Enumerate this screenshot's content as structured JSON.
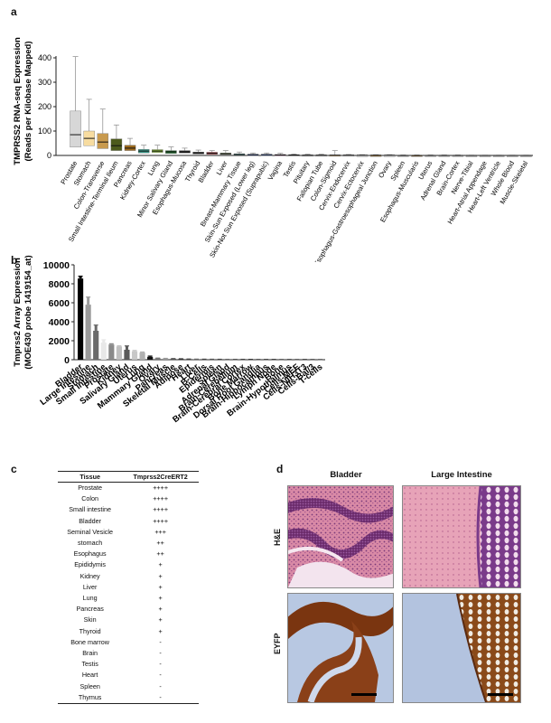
{
  "panels": {
    "a": "a",
    "b": "b",
    "c": "c",
    "d": "d"
  },
  "chart_data": [
    {
      "type": "box",
      "ylabel": "TMPRSS2 RNA-seq Expression\n(Reads per Kilobase Mapped)",
      "ylim": [
        0,
        400
      ],
      "yticks": [
        0,
        100,
        200,
        300,
        400
      ],
      "categories": [
        "Prostate",
        "Stomach",
        "Colon-Transverse",
        "Small Intestine-Terminal Ileum",
        "Pancreas",
        "Kidney-Cortex",
        "Lung",
        "Minor Salivary Gland",
        "Esophagus-Mucosa",
        "Thyroid",
        "Bladder",
        "Liver",
        "Breast-Mammary Tissue",
        "Skin-Sun Exposed (Lower leg)",
        "Skin-Not Sun Exposed (Suprapubic)",
        "Vagina",
        "Testis",
        "Pituitary",
        "Fallopian Tube",
        "Colon-Sigmoid",
        "Cervix-Endocervix",
        "Cervix-Ectocervix",
        "Esophagus-Gastroesophageal Junction",
        "Ovary",
        "Spleen",
        "Esophagus-Muscularis",
        "Uterus",
        "Adrenal Gland",
        "Brain-Cortex",
        "Nerve-Tibial",
        "Heart-Atrial Appendage",
        "Heart-Left Ventricle",
        "Whole Blood",
        "Muscle-Skeletal"
      ],
      "colors": [
        "#d7d7d7",
        "#f7dca0",
        "#c89a4e",
        "#4c5a1c",
        "#9c6a1e",
        "#3a9a8a",
        "#86b33a",
        "#1f6a2c",
        "#2c2c2c",
        "#222222",
        "#b01822",
        "#5a6a22",
        "#30b6b6",
        "#1c3fa0",
        "#2858c8",
        "#c05a9a",
        "#999999",
        "#aaaaaa",
        "#bbbbbb",
        "#c0a070",
        "#cccccc",
        "#cccccc",
        "#a08050",
        "#cccccc",
        "#bbbbbb",
        "#a08050",
        "#cccccc",
        "#cccccc",
        "#cccccc",
        "#cccccc",
        "#cccccc",
        "#cccccc",
        "#cccccc",
        "#cccccc"
      ],
      "boxes": [
        {
          "q1": 34,
          "median": 85,
          "q3": 182,
          "whisker_low": 0,
          "whisker_high": 405
        },
        {
          "q1": 40,
          "median": 70,
          "q3": 100,
          "whisker_low": 0,
          "whisker_high": 230
        },
        {
          "q1": 28,
          "median": 55,
          "q3": 90,
          "whisker_low": 0,
          "whisker_high": 190
        },
        {
          "q1": 20,
          "median": 40,
          "q3": 68,
          "whisker_low": 0,
          "whisker_high": 125
        },
        {
          "q1": 20,
          "median": 30,
          "q3": 42,
          "whisker_low": 0,
          "whisker_high": 70
        },
        {
          "q1": 10,
          "median": 18,
          "q3": 25,
          "whisker_low": 0,
          "whisker_high": 42
        },
        {
          "q1": 12,
          "median": 18,
          "q3": 24,
          "whisker_low": 0,
          "whisker_high": 42
        },
        {
          "q1": 8,
          "median": 15,
          "q3": 20,
          "whisker_low": 0,
          "whisker_high": 35
        },
        {
          "q1": 10,
          "median": 14,
          "q3": 20,
          "whisker_low": 0,
          "whisker_high": 30
        },
        {
          "q1": 6,
          "median": 10,
          "q3": 14,
          "whisker_low": 0,
          "whisker_high": 22
        },
        {
          "q1": 5,
          "median": 9,
          "q3": 13,
          "whisker_low": 0,
          "whisker_high": 20
        },
        {
          "q1": 4,
          "median": 7,
          "q3": 10,
          "whisker_low": 0,
          "whisker_high": 20
        },
        {
          "q1": 2,
          "median": 4,
          "q3": 7,
          "whisker_low": 0,
          "whisker_high": 14
        },
        {
          "q1": 2,
          "median": 3,
          "q3": 5,
          "whisker_low": 0,
          "whisker_high": 10
        },
        {
          "q1": 1,
          "median": 3,
          "q3": 5,
          "whisker_low": 0,
          "whisker_high": 10
        },
        {
          "q1": 1,
          "median": 2,
          "q3": 4,
          "whisker_low": 0,
          "whisker_high": 9
        },
        {
          "q1": 1,
          "median": 2,
          "q3": 3,
          "whisker_low": 0,
          "whisker_high": 6
        },
        {
          "q1": 1,
          "median": 1,
          "q3": 2,
          "whisker_low": 0,
          "whisker_high": 5
        },
        {
          "q1": 1,
          "median": 1,
          "q3": 2,
          "whisker_low": 0,
          "whisker_high": 5
        },
        {
          "q1": 1,
          "median": 1,
          "q3": 2,
          "whisker_low": 0,
          "whisker_high": 20
        },
        {
          "q1": 0,
          "median": 1,
          "q3": 2,
          "whisker_low": 0,
          "whisker_high": 4
        },
        {
          "q1": 0,
          "median": 1,
          "q3": 1,
          "whisker_low": 0,
          "whisker_high": 3
        },
        {
          "q1": 0,
          "median": 1,
          "q3": 1,
          "whisker_low": 0,
          "whisker_high": 3
        },
        {
          "q1": 0,
          "median": 1,
          "q3": 1,
          "whisker_low": 0,
          "whisker_high": 3
        },
        {
          "q1": 0,
          "median": 0,
          "q3": 1,
          "whisker_low": 0,
          "whisker_high": 2
        },
        {
          "q1": 0,
          "median": 0,
          "q3": 1,
          "whisker_low": 0,
          "whisker_high": 2
        },
        {
          "q1": 0,
          "median": 0,
          "q3": 1,
          "whisker_low": 0,
          "whisker_high": 2
        },
        {
          "q1": 0,
          "median": 0,
          "q3": 1,
          "whisker_low": 0,
          "whisker_high": 2
        },
        {
          "q1": 0,
          "median": 0,
          "q3": 1,
          "whisker_low": 0,
          "whisker_high": 2
        },
        {
          "q1": 0,
          "median": 0,
          "q3": 0,
          "whisker_low": 0,
          "whisker_high": 1
        },
        {
          "q1": 0,
          "median": 0,
          "q3": 0,
          "whisker_low": 0,
          "whisker_high": 1
        },
        {
          "q1": 0,
          "median": 0,
          "q3": 0,
          "whisker_low": 0,
          "whisker_high": 1
        },
        {
          "q1": 0,
          "median": 0,
          "q3": 0,
          "whisker_low": 0,
          "whisker_high": 1
        },
        {
          "q1": 0,
          "median": 0,
          "q3": 0,
          "whisker_low": 0,
          "whisker_high": 1
        }
      ]
    },
    {
      "type": "bar",
      "ylabel": "Tmprss2 Array Expression\n(MOE430 probe 1419154_at)",
      "ylim": [
        0,
        10000
      ],
      "yticks": [
        0,
        2000,
        4000,
        6000,
        8000,
        10000
      ],
      "categories": [
        "Bladder",
        "Large Intestine",
        "Stomach",
        "Small Intestine",
        "Prostate",
        "Kidney",
        "Salivary Gland",
        "Uterus",
        "Lung",
        "Mammary Gland",
        "Ovary",
        "Pancreas",
        "Skeletal Muscle",
        "Adipose",
        "Heart",
        "Liver",
        "B-Cells",
        "Epidermis",
        "Spleen",
        "Adrenal Gland",
        "Brain-Cerebellum",
        "Brain-Cerebral Cortex",
        "Bone Marrow",
        "Dorsal Root Ganglia",
        "Brain-Hippocampus",
        "Lymph Node",
        "Bone",
        "Brain-Hypothalmus",
        "Cells-MEF",
        "Cells-NIH3T3",
        "Cells-Bal/3",
        "T-cells"
      ],
      "values": [
        8550,
        5800,
        3050,
        1800,
        1600,
        1400,
        1050,
        900,
        750,
        300,
        150,
        120,
        100,
        80,
        60,
        50,
        45,
        40,
        35,
        30,
        30,
        30,
        25,
        25,
        25,
        20,
        20,
        20,
        20,
        15,
        15,
        15
      ],
      "errors": [
        250,
        800,
        600,
        300,
        80,
        60,
        400,
        80,
        60,
        80,
        20,
        20,
        20,
        15,
        10,
        10,
        10,
        10,
        10,
        10,
        10,
        10,
        10,
        10,
        10,
        10,
        10,
        10,
        10,
        10,
        10,
        10
      ],
      "colors": [
        "#000000",
        "#9a9a9a",
        "#6a6a6a",
        "#e8e8e8",
        "#8a8a8a",
        "#c0c0c0",
        "#5a5a5a",
        "#c8c8c8",
        "#b0b0b0",
        "#111111",
        "#777777",
        "#999999",
        "#555555",
        "#333333",
        "#444444",
        "#666666",
        "#444444",
        "#555555",
        "#444444",
        "#666666",
        "#555555",
        "#444444",
        "#333333",
        "#555555",
        "#444444",
        "#333333",
        "#555555",
        "#444444",
        "#555555",
        "#333333",
        "#444444",
        "#555555"
      ]
    }
  ],
  "table_c": {
    "headers": [
      "Tissue",
      "Tmprss2CreERT2"
    ],
    "rows": [
      [
        "Prostate",
        "++++"
      ],
      [
        "Colon",
        "++++"
      ],
      [
        "Small intestine",
        "++++"
      ],
      [
        "Bladder",
        "++++"
      ],
      [
        "Seminal Vesicle",
        "+++"
      ],
      [
        "stomach",
        "++"
      ],
      [
        "Esophagus",
        "++"
      ],
      [
        "Epididymis",
        "+"
      ],
      [
        "Kidney",
        "+"
      ],
      [
        "Liver",
        "+"
      ],
      [
        "Lung",
        "+"
      ],
      [
        "Pancreas",
        "+"
      ],
      [
        "Skin",
        "+"
      ],
      [
        "Thyroid",
        "+"
      ],
      [
        "Bone marrow",
        "-"
      ],
      [
        "Brain",
        "-"
      ],
      [
        "Testis",
        "-"
      ],
      [
        "Heart",
        "-"
      ],
      [
        "Spleen",
        "-"
      ],
      [
        "Thymus",
        "-"
      ]
    ]
  },
  "histology": {
    "columns": [
      "Bladder",
      "Large Intestine"
    ],
    "rows": [
      "H&E",
      "EYFP"
    ]
  }
}
